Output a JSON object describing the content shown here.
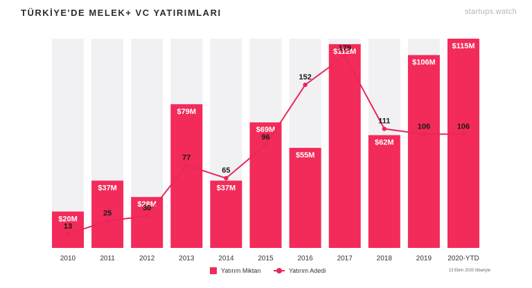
{
  "header": {
    "title": "TÜRKİYE'DE MELEK+ VC YATIRIMLARI",
    "brand": "startups.watch"
  },
  "legend": {
    "bar_label": "Yatırım Miktarı",
    "line_label": "Yatırım Adedi"
  },
  "footnote": "13 Ekim 2020 itibariyle",
  "colors": {
    "bar": "#f22b5a",
    "line": "#e8275a",
    "background_column": "#f1f1f3"
  },
  "chart_data": {
    "type": "bar",
    "categories": [
      "2010",
      "2011",
      "2012",
      "2013",
      "2014",
      "2015",
      "2016",
      "2017",
      "2018",
      "2019",
      "2020-YTD"
    ],
    "series": [
      {
        "name": "Yatırım Miktarı",
        "type": "bar",
        "values": [
          20,
          37,
          28,
          79,
          37,
          69,
          55,
          112,
          62,
          106,
          115
        ],
        "labels": [
          "$20M",
          "$37M",
          "$28M",
          "$79M",
          "$37M",
          "$69M",
          "$55M",
          "$112M",
          "$62M",
          "$106M",
          "$115M"
        ]
      },
      {
        "name": "Yatırım Adedi",
        "type": "line",
        "values": [
          13,
          25,
          30,
          77,
          65,
          96,
          152,
          179,
          111,
          106,
          106
        ],
        "labels": [
          "13",
          "25",
          "30",
          "77",
          "65",
          "96",
          "152",
          "179",
          "111",
          "106",
          "106"
        ]
      }
    ],
    "ylim": [
      0,
      115
    ],
    "legend_position": "bottom",
    "grid": false
  }
}
